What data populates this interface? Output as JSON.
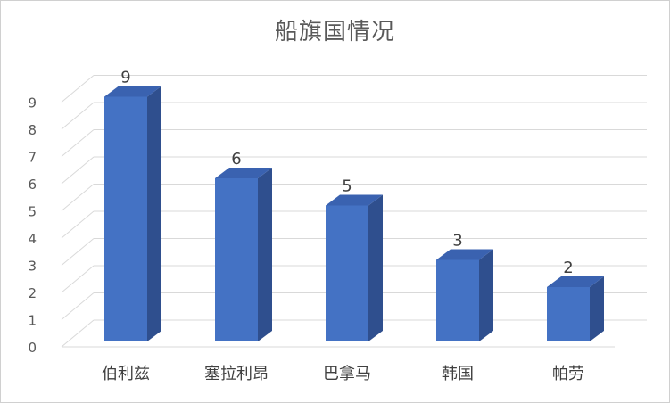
{
  "chart_data": {
    "type": "bar",
    "title": "船旗国情况",
    "categories": [
      "伯利兹",
      "塞拉利昂",
      "巴拿马",
      "韩国",
      "帕劳"
    ],
    "values": [
      9,
      6,
      5,
      3,
      2
    ],
    "xlabel": "",
    "ylabel": "",
    "ylim": [
      0,
      9
    ],
    "yticks": [
      0,
      1,
      2,
      3,
      4,
      5,
      6,
      7,
      8,
      9
    ],
    "grid": true,
    "legend": "none",
    "style": "3d-column",
    "colors": {
      "bar_front": "#4472C4",
      "bar_side": "#2F4F8E",
      "bar_top": "#3A62B0",
      "grid": "#d9d9d9"
    }
  }
}
